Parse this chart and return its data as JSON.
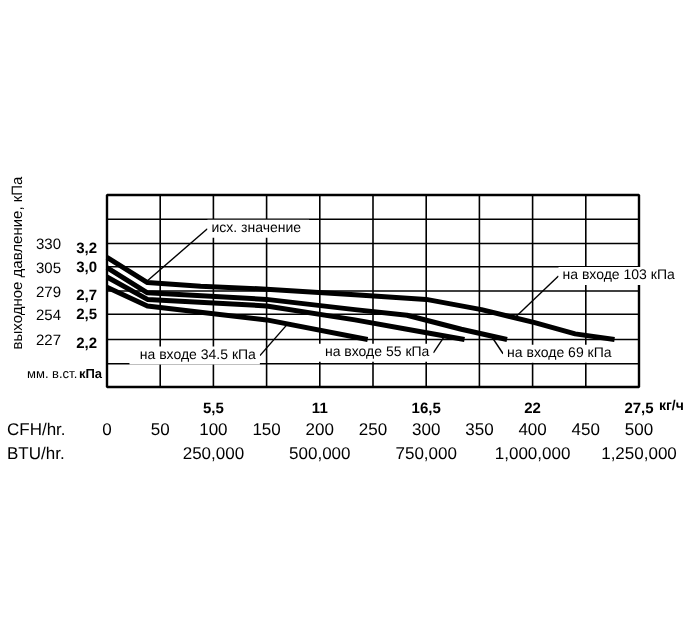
{
  "chart_data": {
    "type": "line",
    "ylabel": "выходное давление, кПа",
    "xlabel": "CFH/hr.\nBTU/hr.",
    "x2label": "кг/ч",
    "xlim": [
      0,
      500
    ],
    "xticks": [
      {
        "value": 0,
        "label": "0\n "
      },
      {
        "value": 50,
        "label": "50\n "
      },
      {
        "value": 100,
        "label": "100\n250,000"
      },
      {
        "value": 150,
        "label": "150\n "
      },
      {
        "value": 200,
        "label": "200\n500,000"
      },
      {
        "value": 250,
        "label": "250\n "
      },
      {
        "value": 300,
        "label": "300\n750,000"
      },
      {
        "value": 350,
        "label": "350\n "
      },
      {
        "value": 400,
        "label": "400\n1,000,000"
      },
      {
        "value": 450,
        "label": "450\n "
      },
      {
        "value": 500,
        "label": "500\n1,250,000"
      }
    ],
    "x2lim": [
      0,
      27.5
    ],
    "x2ticks": [
      {
        "value": 5.5,
        "label": "5,5"
      },
      11,
      {
        "value": 16.5,
        "label": "16,5"
      },
      22,
      {
        "value": 27.5,
        "label": "27,5"
      }
    ],
    "ylim": [
      176,
      382
    ],
    "yticks": [
      {
        "value": 201,
        "label": null
      },
      227,
      254,
      279,
      305,
      330,
      {
        "value": 356,
        "label": null
      }
    ],
    "y2lim": [
      1.725,
      3.745
    ],
    "y2ticks": [
      {
        "value": 2.2,
        "label": "2,2"
      },
      {
        "value": 2.5,
        "label": "2,5"
      },
      {
        "value": 2.7,
        "label": "2,7"
      },
      {
        "value": 3.0,
        "label": "3,0"
      },
      {
        "value": 3.2,
        "label": "3,2"
      }
    ],
    "grid": true,
    "series": [
      {
        "color": "#000000",
        "x": [
          0,
          38,
          88,
          150,
          233,
          300,
          352,
          402,
          440,
          477
        ],
        "values": [
          315,
          288,
          284,
          281,
          275,
          270,
          259,
          245,
          233,
          227
        ]
      },
      {
        "color": "#000000",
        "x": [
          0,
          38,
          150,
          233,
          282,
          333,
          376
        ],
        "values": [
          304,
          277,
          270,
          259,
          253,
          238,
          227
        ]
      },
      {
        "color": "#000000",
        "x": [
          0,
          38,
          150,
          233,
          282,
          336
        ],
        "values": [
          294,
          270,
          263,
          248,
          238,
          227
        ]
      },
      {
        "color": "#000000",
        "x": [
          0,
          38,
          150,
          245
        ],
        "values": [
          283,
          263,
          248,
          227
        ]
      }
    ],
    "annotations": [
      {
        "text": "исх. значение",
        "x": 38,
        "y": 290
      },
      {
        "text": "на входе 34.5 кПа",
        "x": 170,
        "y": 244
      },
      {
        "text": "на входе 55 кПа",
        "x": 318,
        "y": 232
      },
      {
        "text": "на входе 69 кПа",
        "x": 361,
        "y": 231
      },
      {
        "text": "на входе 103 кПа",
        "x": 383,
        "y": 250
      },
      "мм. в.ст.",
      "кПа"
    ]
  }
}
